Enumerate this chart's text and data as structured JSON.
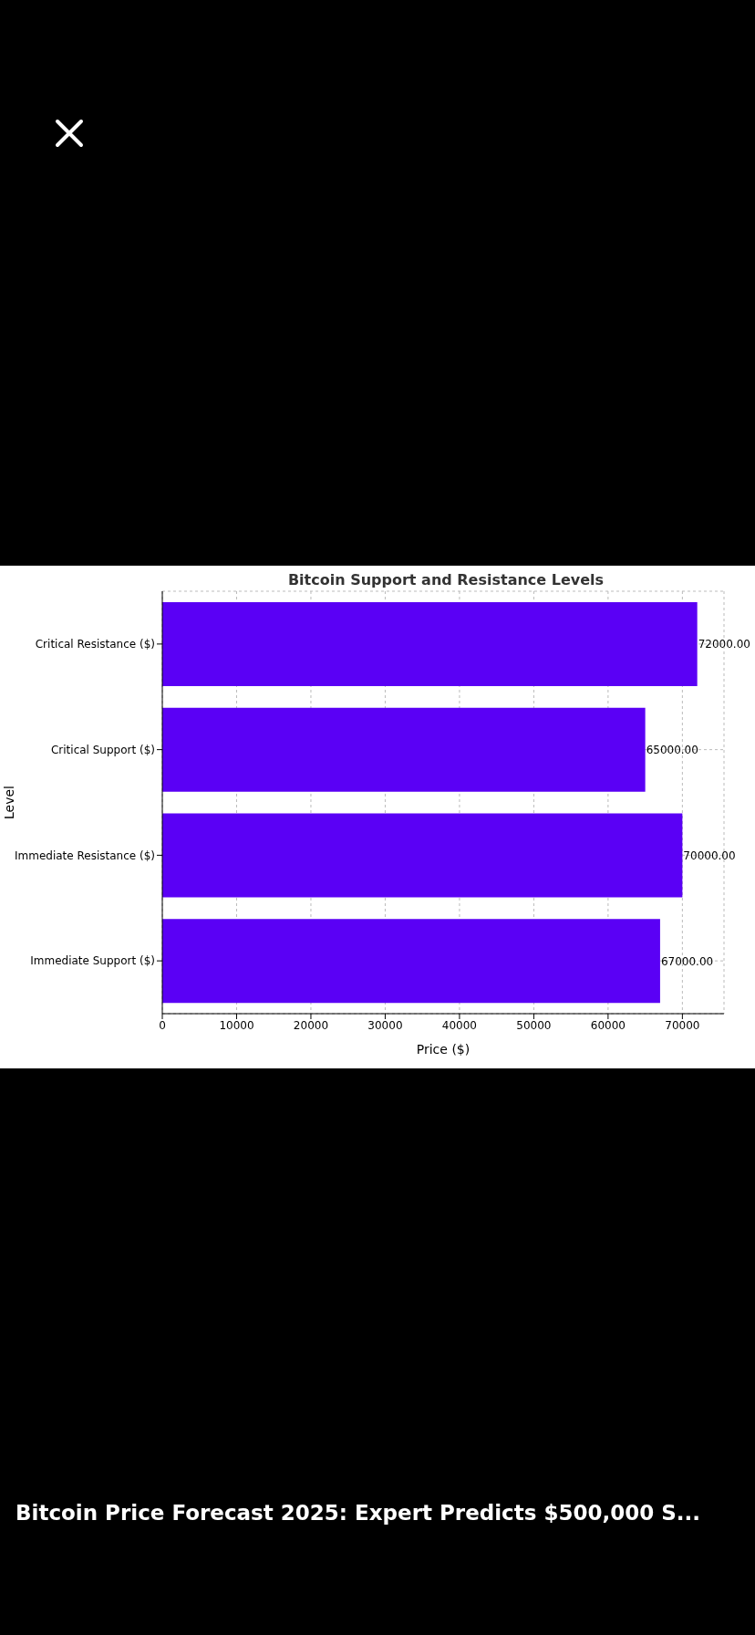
{
  "chart_data": {
    "type": "bar",
    "orientation": "horizontal",
    "title": "Bitcoin Support and Resistance Levels",
    "xlabel": "Price ($)",
    "ylabel": "Level",
    "categories": [
      "Critical Resistance ($)",
      "Critical Support ($)",
      "Immediate Resistance ($)",
      "Immediate Support ($)"
    ],
    "values": [
      72000,
      65000,
      70000,
      67000
    ],
    "value_labels": [
      "72000.00",
      "65000.00",
      "70000.00",
      "67000.00"
    ],
    "color": "#5a00f5",
    "xlim": [
      0,
      75600
    ],
    "xticks": [
      0,
      10000,
      20000,
      30000,
      40000,
      50000,
      60000,
      70000
    ],
    "grid": true,
    "annotations": [
      "Bitcoin Price Forecast 2025: Expert Predicts $500,000 S..."
    ]
  }
}
